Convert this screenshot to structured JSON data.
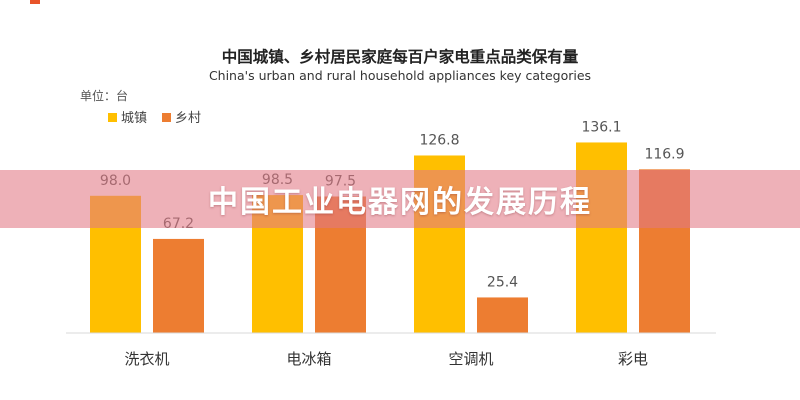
{
  "banner": {
    "text": "中国工业电器网的发展历程"
  },
  "chart_data": {
    "type": "bar",
    "title": "中国城镇、乡村居民家庭每百户家电重点品类保有量",
    "subtitle": "China's urban and rural household appliances key categories",
    "unit_label": "单位：台",
    "categories": [
      "洗衣机",
      "电冰箱",
      "空调机",
      "彩电"
    ],
    "series": [
      {
        "name": "城镇",
        "values": [
          98.0,
          98.5,
          126.8,
          136.1
        ],
        "color": "#ffbf00"
      },
      {
        "name": "乡村",
        "values": [
          67.2,
          97.5,
          25.4,
          116.9
        ],
        "color": "#ed7d31"
      }
    ],
    "value_labels": [
      [
        "98.0",
        "98.5",
        "126.8",
        "136.1"
      ],
      [
        "67.2",
        "97.5",
        "25.4",
        "116.9"
      ]
    ],
    "ylim": [
      0,
      150
    ],
    "grid": false,
    "legend": "top-left"
  }
}
